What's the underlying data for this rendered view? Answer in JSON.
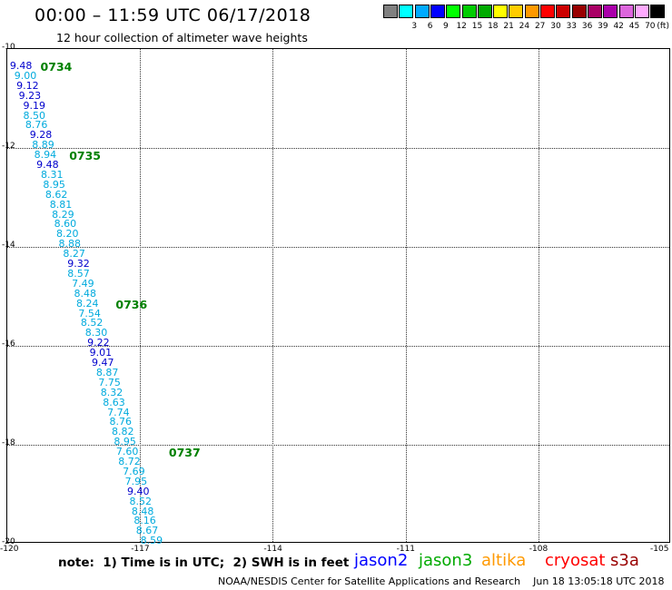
{
  "header": {
    "title": "00:00 – 11:59 UTC 06/17/2018",
    "subtitle": "12 hour collection of altimeter wave heights"
  },
  "legend": {
    "unit": "(ft)",
    "bins": [
      {
        "label": "",
        "color": "#808080"
      },
      {
        "label": "3",
        "color": "#00ffff"
      },
      {
        "label": "6",
        "color": "#00aaff"
      },
      {
        "label": "9",
        "color": "#0000ff"
      },
      {
        "label": "12",
        "color": "#00ff00"
      },
      {
        "label": "15",
        "color": "#00cc00"
      },
      {
        "label": "18",
        "color": "#00aa00"
      },
      {
        "label": "21",
        "color": "#ffff00"
      },
      {
        "label": "24",
        "color": "#ffcc00"
      },
      {
        "label": "27",
        "color": "#ff9900"
      },
      {
        "label": "30",
        "color": "#ff0000"
      },
      {
        "label": "33",
        "color": "#cc0000"
      },
      {
        "label": "36",
        "color": "#990000"
      },
      {
        "label": "39",
        "color": "#aa0066"
      },
      {
        "label": "42",
        "color": "#aa00aa"
      },
      {
        "label": "45",
        "color": "#dd66dd"
      },
      {
        "label": "70",
        "color": "#ffaaff"
      },
      {
        "label": "",
        "color": "#000000"
      }
    ]
  },
  "map": {
    "lat_labels": [
      "-10",
      "-12",
      "-14",
      "-16",
      "-18",
      "-20"
    ],
    "lon_labels": [
      "-120",
      "-117",
      "-114",
      "-111",
      "-108",
      "-105"
    ],
    "lat_range": [
      -20,
      -10
    ],
    "lon_range": [
      -120,
      -105
    ],
    "observations": [
      {
        "text": "9.48",
        "lon": -119.9,
        "lat": -10.35,
        "color": "#0000cc"
      },
      {
        "text": "9.00",
        "lon": -119.8,
        "lat": -10.55,
        "color": "#00aadd"
      },
      {
        "text": "9.12",
        "lon": -119.75,
        "lat": -10.75,
        "color": "#0000cc"
      },
      {
        "text": "9.23",
        "lon": -119.7,
        "lat": -10.95,
        "color": "#0000cc"
      },
      {
        "text": "9.19",
        "lon": -119.6,
        "lat": -11.15,
        "color": "#0000cc"
      },
      {
        "text": "8.50",
        "lon": -119.6,
        "lat": -11.35,
        "color": "#00aadd"
      },
      {
        "text": "8.76",
        "lon": -119.55,
        "lat": -11.55,
        "color": "#00aadd"
      },
      {
        "text": "9.28",
        "lon": -119.45,
        "lat": -11.75,
        "color": "#0000cc"
      },
      {
        "text": "8.89",
        "lon": -119.4,
        "lat": -11.95,
        "color": "#00aadd"
      },
      {
        "text": "8.94",
        "lon": -119.35,
        "lat": -12.15,
        "color": "#00aadd"
      },
      {
        "text": "9.48",
        "lon": -119.3,
        "lat": -12.35,
        "color": "#0000cc"
      },
      {
        "text": "8.31",
        "lon": -119.2,
        "lat": -12.55,
        "color": "#00aadd"
      },
      {
        "text": "8.95",
        "lon": -119.15,
        "lat": -12.75,
        "color": "#00aadd"
      },
      {
        "text": "8.62",
        "lon": -119.1,
        "lat": -12.95,
        "color": "#00aadd"
      },
      {
        "text": "8.81",
        "lon": -119.0,
        "lat": -13.15,
        "color": "#00aadd"
      },
      {
        "text": "8.29",
        "lon": -118.95,
        "lat": -13.35,
        "color": "#00aadd"
      },
      {
        "text": "8.60",
        "lon": -118.9,
        "lat": -13.55,
        "color": "#00aadd"
      },
      {
        "text": "8.20",
        "lon": -118.85,
        "lat": -13.75,
        "color": "#00aadd"
      },
      {
        "text": "8.88",
        "lon": -118.8,
        "lat": -13.95,
        "color": "#00aadd"
      },
      {
        "text": "8.27",
        "lon": -118.7,
        "lat": -14.15,
        "color": "#00aadd"
      },
      {
        "text": "9.32",
        "lon": -118.6,
        "lat": -14.35,
        "color": "#0000cc"
      },
      {
        "text": "8.57",
        "lon": -118.6,
        "lat": -14.55,
        "color": "#00aadd"
      },
      {
        "text": "7.49",
        "lon": -118.5,
        "lat": -14.75,
        "color": "#00aadd"
      },
      {
        "text": "8.48",
        "lon": -118.45,
        "lat": -14.95,
        "color": "#00aadd"
      },
      {
        "text": "8.24",
        "lon": -118.4,
        "lat": -15.15,
        "color": "#00aadd"
      },
      {
        "text": "7.54",
        "lon": -118.35,
        "lat": -15.35,
        "color": "#00aadd"
      },
      {
        "text": "8.52",
        "lon": -118.3,
        "lat": -15.55,
        "color": "#00aadd"
      },
      {
        "text": "8.30",
        "lon": -118.2,
        "lat": -15.75,
        "color": "#00aadd"
      },
      {
        "text": "9.22",
        "lon": -118.15,
        "lat": -15.95,
        "color": "#0000cc"
      },
      {
        "text": "9.01",
        "lon": -118.1,
        "lat": -16.15,
        "color": "#0000cc"
      },
      {
        "text": "9.47",
        "lon": -118.05,
        "lat": -16.35,
        "color": "#0000cc"
      },
      {
        "text": "8.87",
        "lon": -117.95,
        "lat": -16.55,
        "color": "#00aadd"
      },
      {
        "text": "7.75",
        "lon": -117.9,
        "lat": -16.75,
        "color": "#00aadd"
      },
      {
        "text": "8.32",
        "lon": -117.85,
        "lat": -16.95,
        "color": "#00aadd"
      },
      {
        "text": "8.63",
        "lon": -117.8,
        "lat": -17.15,
        "color": "#00aadd"
      },
      {
        "text": "7.74",
        "lon": -117.7,
        "lat": -17.35,
        "color": "#00aadd"
      },
      {
        "text": "8.76",
        "lon": -117.65,
        "lat": -17.55,
        "color": "#00aadd"
      },
      {
        "text": "8.82",
        "lon": -117.6,
        "lat": -17.75,
        "color": "#00aadd"
      },
      {
        "text": "8.95",
        "lon": -117.55,
        "lat": -17.95,
        "color": "#00aadd"
      },
      {
        "text": "7.60",
        "lon": -117.5,
        "lat": -18.15,
        "color": "#00aadd"
      },
      {
        "text": "8.72",
        "lon": -117.45,
        "lat": -18.35,
        "color": "#00aadd"
      },
      {
        "text": "7.69",
        "lon": -117.35,
        "lat": -18.55,
        "color": "#00aadd"
      },
      {
        "text": "7.95",
        "lon": -117.3,
        "lat": -18.75,
        "color": "#00aadd"
      },
      {
        "text": "9.40",
        "lon": -117.25,
        "lat": -18.95,
        "color": "#0000cc"
      },
      {
        "text": "8.52",
        "lon": -117.2,
        "lat": -19.15,
        "color": "#00aadd"
      },
      {
        "text": "8.48",
        "lon": -117.15,
        "lat": -19.35,
        "color": "#00aadd"
      },
      {
        "text": "8.16",
        "lon": -117.1,
        "lat": -19.55,
        "color": "#00aadd"
      },
      {
        "text": "8.67",
        "lon": -117.05,
        "lat": -19.75,
        "color": "#00aadd"
      },
      {
        "text": "8.59",
        "lon": -116.95,
        "lat": -19.95,
        "color": "#00aadd"
      }
    ],
    "pass_times": [
      {
        "text": "0734",
        "lon": -119.25,
        "lat": -10.35
      },
      {
        "text": "0735",
        "lon": -118.6,
        "lat": -12.15
      },
      {
        "text": "0736",
        "lon": -117.55,
        "lat": -15.15
      },
      {
        "text": "0737",
        "lon": -116.35,
        "lat": -18.15
      }
    ]
  },
  "footer": {
    "note": "note:  1) Time is in UTC;  2) SWH is in feet",
    "satellites": [
      {
        "name": "jason2",
        "color": "#0000ff"
      },
      {
        "name": "jason3",
        "color": "#00aa00"
      },
      {
        "name": "altika",
        "color": "#ff9900"
      },
      {
        "name": "cryosat",
        "color": "#ff0000"
      },
      {
        "name": "s3a",
        "color": "#990000"
      }
    ],
    "credit": "NOAA/NESDIS Center for Satellite Applications and Research    Jun 18 13:05:18 UTC 2018"
  }
}
